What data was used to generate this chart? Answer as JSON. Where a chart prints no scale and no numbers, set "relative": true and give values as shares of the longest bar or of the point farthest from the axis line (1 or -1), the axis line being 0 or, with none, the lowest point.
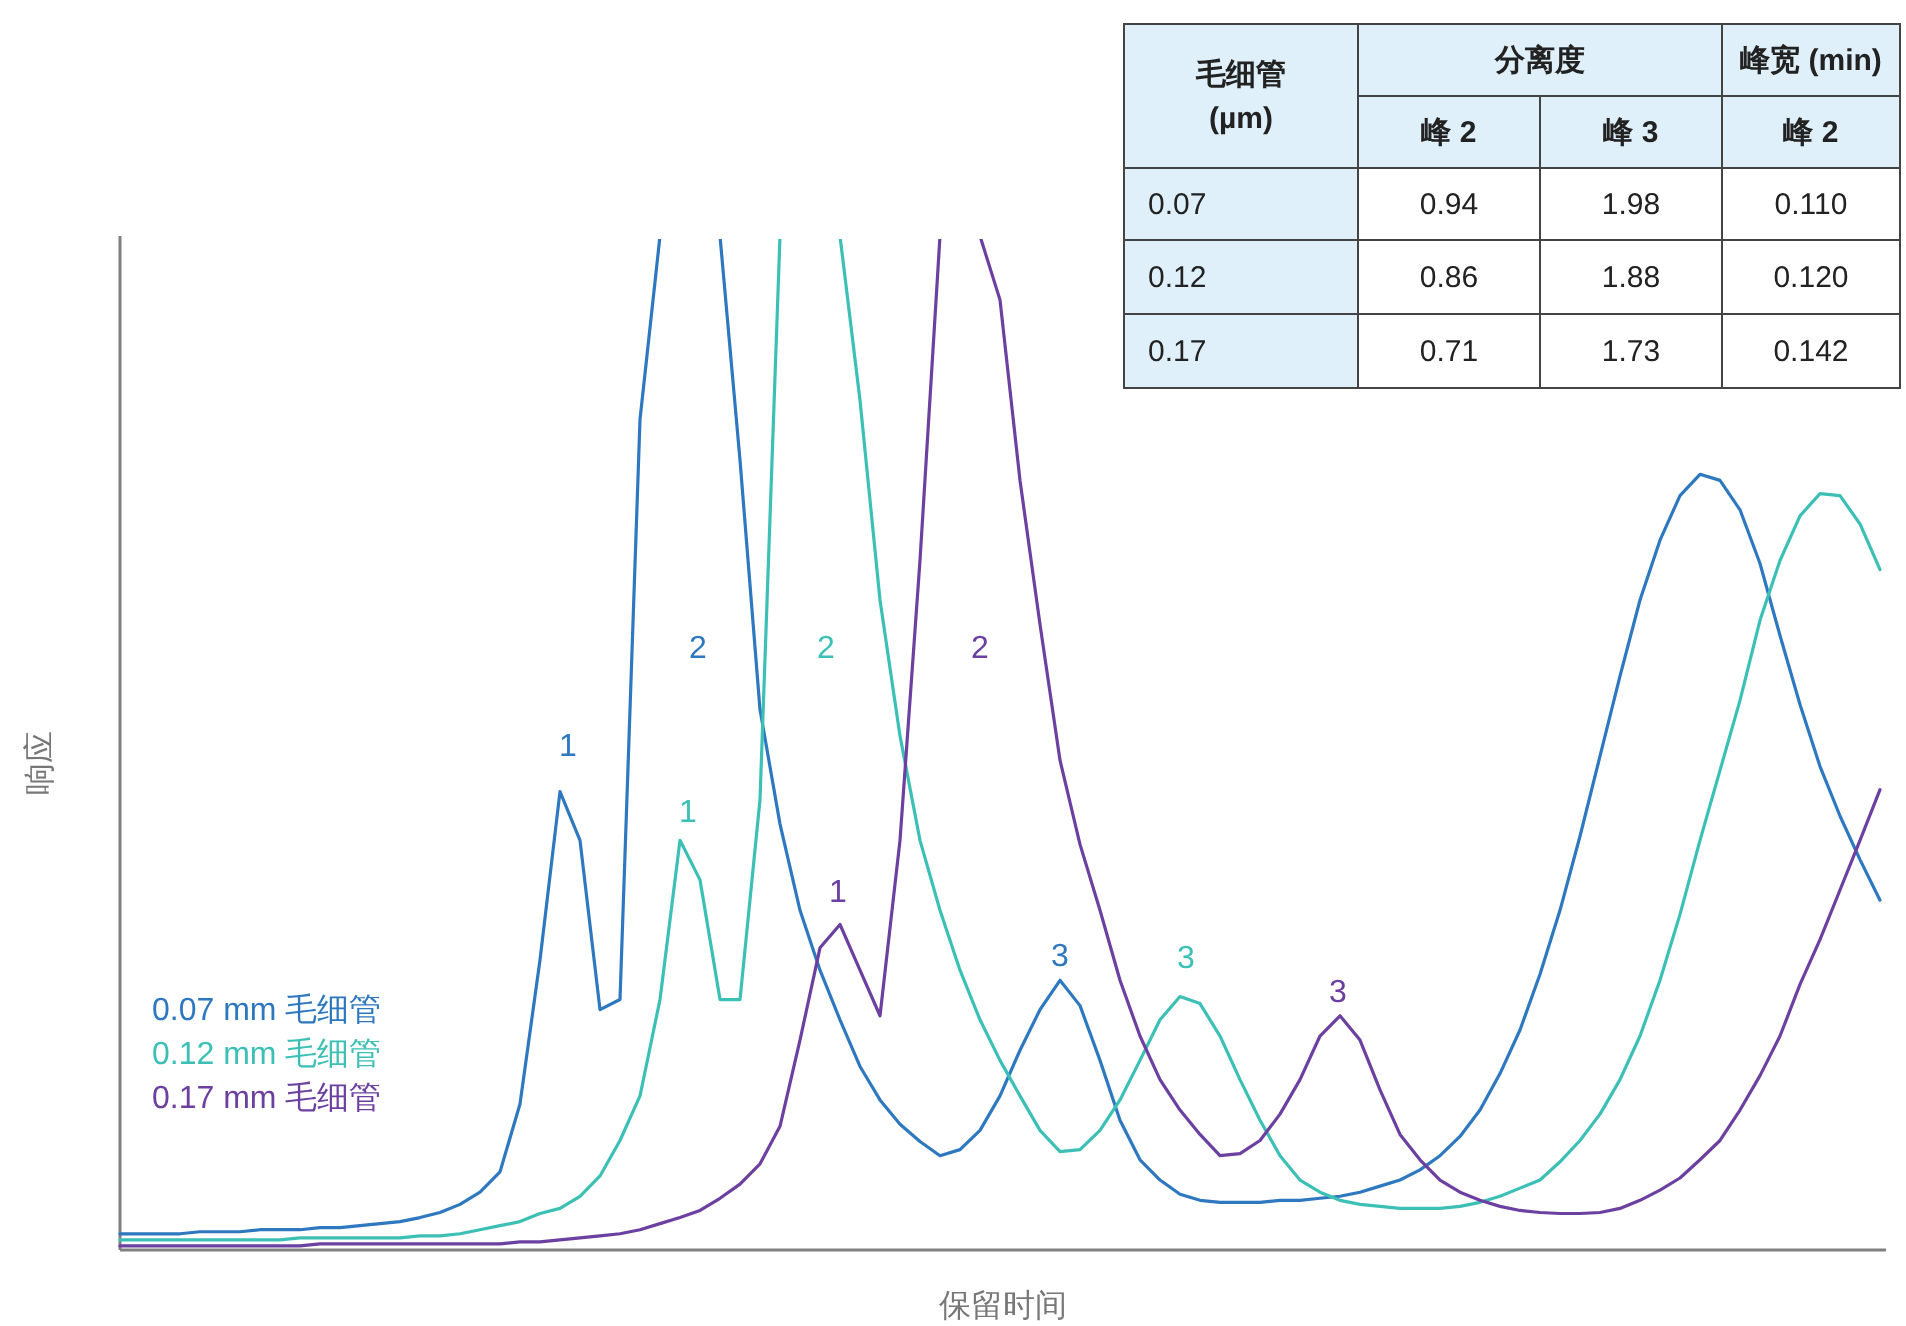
{
  "chart_data": [
    {
      "type": "line",
      "relative": true,
      "xlabel": "保留时间",
      "ylabel": "响应",
      "annotations": [
        "1",
        "2",
        "3",
        "1",
        "2",
        "3",
        "1",
        "2",
        "3"
      ],
      "categories": [
        null,
        null,
        null,
        null,
        null,
        null,
        null,
        null,
        null,
        null,
        null,
        null,
        null,
        null,
        null,
        null,
        null,
        null,
        null,
        null,
        null,
        null,
        null,
        null,
        null,
        null,
        null,
        null,
        null,
        null,
        null,
        null,
        null,
        null,
        null,
        null,
        null,
        null,
        null,
        null,
        null,
        null,
        null,
        null,
        null,
        null,
        null,
        null,
        null,
        null,
        null,
        null,
        null,
        null,
        null,
        null,
        null,
        null,
        null,
        null,
        null,
        null,
        null,
        null,
        null,
        null,
        null,
        null,
        null,
        null,
        null,
        null,
        null,
        null,
        null,
        null,
        null,
        null,
        null,
        null,
        null,
        null,
        null,
        null,
        null,
        null,
        null,
        null,
        null
      ],
      "series": [
        {
          "name": "0.07 mm 毛细管",
          "color": "#2e78c0",
          "values": [
            0.016,
            0.016,
            0.016,
            0.016,
            0.018,
            0.018,
            0.018,
            0.02,
            0.02,
            0.02,
            0.022,
            0.022,
            0.024,
            0.026,
            0.028,
            0.032,
            0.037,
            0.045,
            0.057,
            0.077,
            0.144,
            0.286,
            0.452,
            0.404,
            0.237,
            0.247,
            0.819,
            1,
            null,
            null,
            1,
            0.779,
            0.533,
            0.42,
            0.335,
            0.276,
            0.227,
            0.181,
            0.148,
            0.124,
            0.107,
            0.093,
            0.099,
            0.118,
            0.152,
            0.197,
            0.237,
            0.266,
            0.241,
            0.187,
            0.128,
            0.089,
            0.069,
            0.055,
            0.049,
            0.047,
            0.047,
            0.047,
            0.049,
            0.049,
            0.051,
            0.053,
            0.057,
            0.063,
            0.069,
            0.079,
            0.093,
            0.112,
            0.138,
            0.174,
            0.217,
            0.272,
            0.335,
            0.408,
            0.487,
            0.566,
            0.641,
            0.7,
            0.744,
            0.765,
            0.759,
            0.73,
            0.677,
            0.606,
            0.538,
            0.477,
            0.428,
            0.385,
            0.345
          ]
        },
        {
          "name": "0.12 mm 毛细管",
          "color": "#3cc0b5",
          "values": [
            0.01,
            0.01,
            0.01,
            0.01,
            0.01,
            0.01,
            0.01,
            0.01,
            0.01,
            0.012,
            0.012,
            0.012,
            0.012,
            0.012,
            0.012,
            0.014,
            0.014,
            0.016,
            0.02,
            0.024,
            0.028,
            0.036,
            0.041,
            0.053,
            0.073,
            0.108,
            0.152,
            0.247,
            0.404,
            0.365,
            0.247,
            0.247,
            0.444,
            1,
            null,
            null,
            1,
            0.838,
            0.641,
            0.507,
            0.404,
            0.335,
            0.276,
            0.227,
            0.187,
            0.152,
            0.118,
            0.097,
            0.099,
            0.118,
            0.148,
            0.187,
            0.227,
            0.25,
            0.243,
            0.211,
            0.168,
            0.128,
            0.093,
            0.069,
            0.057,
            0.049,
            0.045,
            0.043,
            0.041,
            0.041,
            0.041,
            0.043,
            0.047,
            0.053,
            0.061,
            0.069,
            0.087,
            0.108,
            0.134,
            0.168,
            0.211,
            0.266,
            0.331,
            0.404,
            0.473,
            0.542,
            0.621,
            0.68,
            0.724,
            0.746,
            0.744,
            0.716,
            0.671
          ]
        },
        {
          "name": "0.17 mm 毛细管",
          "color": "#6b40a0",
          "values": [
            0.004,
            0.004,
            0.004,
            0.004,
            0.004,
            0.004,
            0.004,
            0.004,
            0.004,
            0.004,
            0.006,
            0.006,
            0.006,
            0.006,
            0.006,
            0.006,
            0.006,
            0.006,
            0.006,
            0.006,
            0.008,
            0.008,
            0.01,
            0.012,
            0.014,
            0.016,
            0.02,
            0.026,
            0.032,
            0.039,
            0.051,
            0.065,
            0.085,
            0.122,
            0.207,
            0.298,
            0.321,
            0.276,
            0.231,
            0.404,
            0.68,
            1,
            null,
            1,
            0.937,
            0.759,
            0.617,
            0.483,
            0.4,
            0.335,
            0.266,
            0.211,
            0.168,
            0.138,
            0.114,
            0.093,
            0.095,
            0.108,
            0.134,
            0.168,
            0.211,
            0.231,
            0.207,
            0.158,
            0.114,
            0.089,
            0.069,
            0.057,
            0.049,
            0.043,
            0.039,
            0.037,
            0.036,
            0.036,
            0.037,
            0.041,
            0.049,
            0.059,
            0.071,
            0.089,
            0.108,
            0.138,
            0.172,
            0.211,
            0.262,
            0.306,
            0.355,
            0.404,
            0.454
          ]
        }
      ]
    },
    {
      "type": "other",
      "cell_labels": [
        [
          "毛细管\n(µm)",
          "分离度",
          null,
          "峰宽 (min)"
        ],
        [
          null,
          "峰 2",
          "峰 3",
          "峰 2"
        ],
        [
          "0.07",
          "0.94",
          "1.98",
          "0.110"
        ],
        [
          "0.12",
          "0.86",
          "1.88",
          "0.120"
        ],
        [
          "0.17",
          "0.71",
          "1.73",
          "0.142"
        ]
      ]
    }
  ]
}
